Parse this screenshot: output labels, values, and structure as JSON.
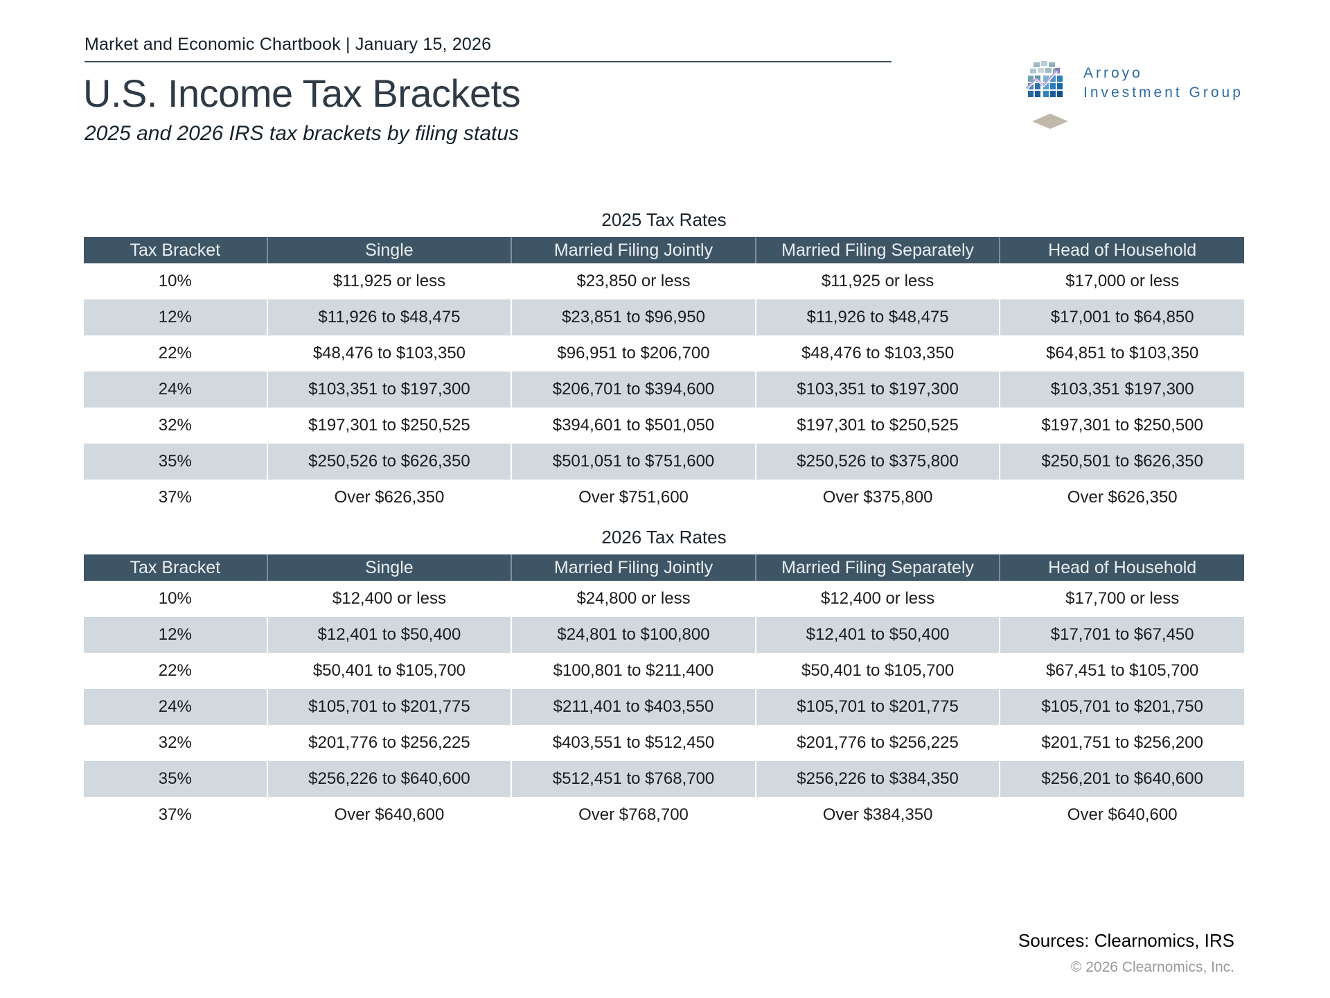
{
  "header": {
    "eyebrow": "Market and Economic Chartbook | January 15, 2026",
    "title": "U.S. Income Tax Brackets",
    "subtitle": "2025 and 2026 IRS tax brackets by filing status"
  },
  "logo": {
    "icon": "cube-chart-logo-icon",
    "shadow_icon": "diamond-shadow-icon",
    "line1": "Arroyo",
    "line2": "Investment Group"
  },
  "tables": [
    {
      "title": "2025 Tax Rates",
      "columns": [
        "Tax Bracket",
        "Single",
        "Married Filing Jointly",
        "Married Filing Separately",
        "Head of Household"
      ],
      "rows": [
        [
          "10%",
          "$11,925 or less",
          "$23,850 or less",
          "$11,925 or less",
          "$17,000 or less"
        ],
        [
          "12%",
          "$11,926 to $48,475",
          "$23,851 to $96,950",
          "$11,926 to $48,475",
          "$17,001 to $64,850"
        ],
        [
          "22%",
          "$48,476 to $103,350",
          "$96,951 to $206,700",
          "$48,476 to $103,350",
          "$64,851 to $103,350"
        ],
        [
          "24%",
          "$103,351 to $197,300",
          "$206,701 to $394,600",
          "$103,351 to $197,300",
          "$103,351 $197,300"
        ],
        [
          "32%",
          "$197,301 to $250,525",
          "$394,601 to $501,050",
          "$197,301 to $250,525",
          "$197,301 to $250,500"
        ],
        [
          "35%",
          "$250,526 to $626,350",
          "$501,051 to $751,600",
          "$250,526 to $375,800",
          "$250,501 to $626,350"
        ],
        [
          "37%",
          "Over $626,350",
          "Over $751,600",
          "Over $375,800",
          "Over $626,350"
        ]
      ]
    },
    {
      "title": "2026 Tax Rates",
      "columns": [
        "Tax Bracket",
        "Single",
        "Married Filing Jointly",
        "Married Filing Separately",
        "Head of Household"
      ],
      "rows": [
        [
          "10%",
          "$12,400 or less",
          "$24,800 or less",
          "$12,400 or less",
          "$17,700 or less"
        ],
        [
          "12%",
          "$12,401 to $50,400",
          "$24,801 to $100,800",
          "$12,401 to $50,400",
          "$17,701 to $67,450"
        ],
        [
          "22%",
          "$50,401 to $105,700",
          "$100,801 to $211,400",
          "$50,401 to $105,700",
          "$67,451 to $105,700"
        ],
        [
          "24%",
          "$105,701 to $201,775",
          "$211,401 to $403,550",
          "$105,701 to $201,775",
          "$105,701 to $201,750"
        ],
        [
          "32%",
          "$201,776 to $256,225",
          "$403,551 to $512,450",
          "$201,776 to $256,225",
          "$201,751 to $256,200"
        ],
        [
          "35%",
          "$256,226 to $640,600",
          "$512,451 to $768,700",
          "$256,226 to $384,350",
          "$256,201 to $640,600"
        ],
        [
          "37%",
          "Over $640,600",
          "Over $768,700",
          "Over $384,350",
          "Over $640,600"
        ]
      ]
    }
  ],
  "footer": {
    "sources": "Sources: Clearnomics, IRS",
    "copyright": "© 2026 Clearnomics, Inc."
  },
  "colors": {
    "table_header_bg": "#3e5565",
    "row_alt": "#d2d9de",
    "logo_blue": "#2d6ba4",
    "title_ink": "#2e3a45"
  }
}
